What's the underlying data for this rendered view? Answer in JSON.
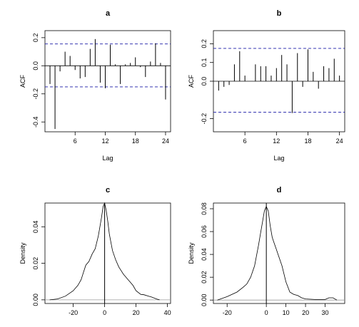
{
  "chart_data": [
    {
      "id": "a",
      "type": "bar",
      "title": "a",
      "xlabel": "Lag",
      "ylabel": "ACF",
      "xlim": [
        0,
        25
      ],
      "ylim": [
        -0.47,
        0.25
      ],
      "xticks": [
        6,
        12,
        18,
        24
      ],
      "yticks": [
        -0.4,
        -0.2,
        0.0,
        0.2
      ],
      "ytick_labels": [
        "-0.4",
        "-0.2",
        "0.0",
        "0.2"
      ],
      "y_axis_labels_rotated": true,
      "confidence_bounds": [
        0.155,
        -0.15
      ],
      "lags": [
        1,
        2,
        3,
        4,
        5,
        6,
        7,
        8,
        9,
        10,
        11,
        12,
        13,
        14,
        15,
        16,
        17,
        18,
        19,
        20,
        21,
        22,
        23,
        24
      ],
      "values": [
        -0.13,
        -0.45,
        -0.04,
        0.1,
        0.07,
        -0.03,
        -0.09,
        -0.08,
        0.12,
        0.19,
        -0.12,
        -0.16,
        0.15,
        0.01,
        -0.13,
        0.01,
        0.02,
        0.06,
        -0.01,
        -0.08,
        0.03,
        0.16,
        0.02,
        -0.24
      ]
    },
    {
      "id": "b",
      "type": "bar",
      "title": "b",
      "xlabel": "Lag",
      "ylabel": "ACF",
      "xlim": [
        0,
        25
      ],
      "ylim": [
        -0.27,
        0.27
      ],
      "xticks": [
        6,
        12,
        18,
        24
      ],
      "yticks": [
        -0.2,
        0.0,
        0.1,
        0.2
      ],
      "ytick_labels": [
        "-0.2",
        "0.0",
        "0.1",
        "0.2"
      ],
      "y_axis_labels_rotated": true,
      "confidence_bounds": [
        0.175,
        -0.165
      ],
      "lags": [
        1,
        2,
        3,
        4,
        5,
        6,
        7,
        8,
        9,
        10,
        11,
        12,
        13,
        14,
        15,
        16,
        17,
        18,
        19,
        20,
        21,
        22,
        23,
        24
      ],
      "values": [
        -0.05,
        -0.03,
        -0.02,
        0.09,
        0.16,
        0.03,
        0.0,
        0.09,
        0.08,
        0.08,
        0.03,
        0.07,
        0.14,
        0.09,
        -0.17,
        0.15,
        -0.03,
        0.17,
        0.05,
        -0.04,
        0.08,
        0.07,
        0.12,
        0.03
      ]
    },
    {
      "id": "c",
      "type": "line",
      "title": "c",
      "xlabel": "",
      "ylabel": "Density",
      "xlim": [
        -38,
        42
      ],
      "ylim": [
        -0.002,
        0.053
      ],
      "xticks": [
        -20,
        0,
        20,
        40
      ],
      "xtick_labels": [
        "-20",
        "0",
        "20",
        "40"
      ],
      "yticks": [
        0.0,
        0.02,
        0.04
      ],
      "ytick_labels": [
        "0.00",
        "0.02",
        "0.04"
      ],
      "y_axis_labels_rotated": true,
      "vertical_line_x": 0,
      "baseline_y": 0,
      "x": [
        -35,
        -30,
        -25,
        -20,
        -17,
        -15,
        -12,
        -10,
        -8,
        -6,
        -4,
        -2,
        -1,
        0,
        1,
        2,
        3,
        5,
        7,
        9,
        12,
        15,
        18,
        20,
        23,
        25,
        28,
        30,
        33,
        35
      ],
      "y": [
        0.0,
        0.0005,
        0.002,
        0.005,
        0.008,
        0.011,
        0.019,
        0.021,
        0.025,
        0.028,
        0.035,
        0.045,
        0.051,
        0.053,
        0.049,
        0.043,
        0.036,
        0.027,
        0.022,
        0.018,
        0.014,
        0.011,
        0.008,
        0.005,
        0.003,
        0.0028,
        0.002,
        0.0015,
        0.0005,
        0.0
      ]
    },
    {
      "id": "d",
      "type": "line",
      "title": "d",
      "xlabel": "",
      "ylabel": "Density",
      "xlim": [
        -27,
        40
      ],
      "ylim": [
        -0.003,
        0.085
      ],
      "xticks": [
        -20,
        0,
        10,
        20,
        30
      ],
      "xtick_labels": [
        "-20",
        "0",
        "10",
        "20",
        "30"
      ],
      "yticks": [
        0.0,
        0.02,
        0.04,
        0.06,
        0.08
      ],
      "ytick_labels": [
        "0.00",
        "0.02",
        "0.04",
        "0.06",
        "0.08"
      ],
      "y_axis_labels_rotated": true,
      "vertical_line_x": 0,
      "baseline_y": 0,
      "x": [
        -25,
        -20,
        -15,
        -12,
        -10,
        -8,
        -6,
        -4,
        -3,
        -2,
        -1,
        0,
        1,
        2,
        3,
        4,
        5,
        6,
        8,
        10,
        12,
        14,
        16,
        18,
        20,
        25,
        30,
        32,
        34,
        36
      ],
      "y": [
        0.0,
        0.003,
        0.007,
        0.011,
        0.014,
        0.02,
        0.03,
        0.048,
        0.058,
        0.068,
        0.078,
        0.082,
        0.078,
        0.065,
        0.055,
        0.05,
        0.045,
        0.04,
        0.03,
        0.016,
        0.007,
        0.005,
        0.004,
        0.002,
        0.001,
        0.0005,
        0.0005,
        0.002,
        0.002,
        0.0
      ]
    }
  ]
}
